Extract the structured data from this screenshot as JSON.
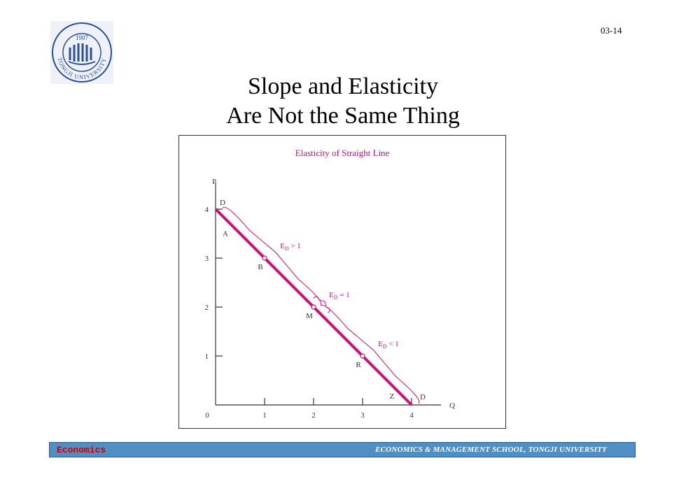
{
  "slide_number": "03-14",
  "title_line1": "Slope and Elasticity",
  "title_line2": "Are Not the Same Thing",
  "footer": {
    "left": "Economics",
    "right": "ECONOMICS & MANAGEMENT SCHOOL, TONGJI UNIVERSITY",
    "left_color": "#cc0000",
    "bg_color": "#4f8fc4"
  },
  "logo": {
    "year": "1907",
    "text": "TONGJI UNIVERSITY",
    "color": "#2a4f9c"
  },
  "chart_data": {
    "type": "line",
    "title": "Elasticity of Straight Line",
    "title_color": "#cc1177",
    "xlabel": "Q",
    "ylabel": "P",
    "xlim": [
      0,
      4.6
    ],
    "ylim": [
      0,
      4.4
    ],
    "x_ticks": [
      0,
      1,
      2,
      3,
      4
    ],
    "y_ticks": [
      1,
      2,
      3,
      4
    ],
    "series": [
      {
        "name": "D",
        "color": "#cc1177",
        "points": [
          [
            0,
            4
          ],
          [
            4,
            0
          ]
        ]
      }
    ],
    "line_end_labels": [
      "D",
      "D"
    ],
    "point_labels": [
      {
        "label": "A",
        "x": 0.2,
        "y": 3.45
      },
      {
        "label": "B",
        "x": 1.0,
        "y": 3.0,
        "marker": true
      },
      {
        "label": "M",
        "x": 2.0,
        "y": 2.0,
        "marker": true
      },
      {
        "label": "R",
        "x": 3.0,
        "y": 1.0,
        "marker": true
      },
      {
        "label": "Z",
        "x": 3.8,
        "y": 0.1
      }
    ],
    "braces": [
      {
        "label_main": "E",
        "label_sub": "D",
        "label_rel": " > 1",
        "from": [
          0,
          4
        ],
        "to": [
          2,
          2
        ]
      },
      {
        "label_main": "E",
        "label_sub": "D",
        "label_rel": " = 1",
        "from": [
          1.9,
          2.1
        ],
        "to": [
          2.1,
          1.9
        ]
      },
      {
        "label_main": "E",
        "label_sub": "D",
        "label_rel": " < 1",
        "from": [
          2,
          2
        ],
        "to": [
          4,
          0
        ]
      }
    ]
  }
}
